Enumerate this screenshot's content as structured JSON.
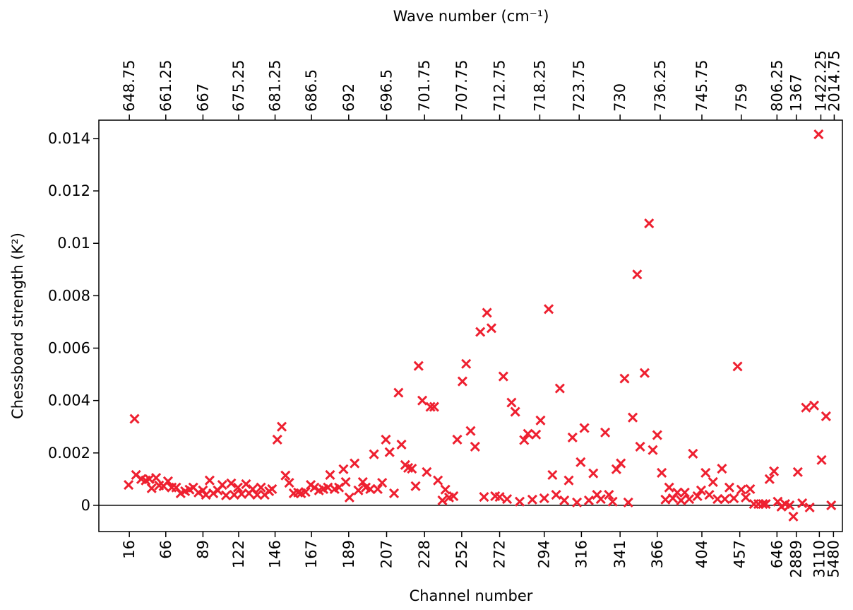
{
  "chart_data": {
    "type": "scatter",
    "title": "Wave number (cm⁻¹)",
    "x_label": "Channel number",
    "y_label": "Chessboard strength (K²)",
    "color": "#ee2030",
    "zero_line": true,
    "xlim": [
      0,
      100
    ],
    "ylim": [
      -0.001,
      0.0147
    ],
    "yticks": [
      0,
      0.002,
      0.004,
      0.006,
      0.008,
      0.01,
      0.012,
      0.014
    ],
    "xticks": [
      {
        "value": 4.1,
        "label": "16"
      },
      {
        "value": 9.0,
        "label": "66"
      },
      {
        "value": 14.0,
        "label": "89"
      },
      {
        "value": 18.8,
        "label": "122"
      },
      {
        "value": 23.7,
        "label": "146"
      },
      {
        "value": 28.6,
        "label": "167"
      },
      {
        "value": 33.6,
        "label": "189"
      },
      {
        "value": 38.7,
        "label": "207"
      },
      {
        "value": 43.8,
        "label": "228"
      },
      {
        "value": 48.8,
        "label": "252"
      },
      {
        "value": 53.9,
        "label": "272"
      },
      {
        "value": 59.9,
        "label": "294"
      },
      {
        "value": 64.9,
        "label": "316"
      },
      {
        "value": 70.1,
        "label": "341"
      },
      {
        "value": 75.1,
        "label": "366"
      },
      {
        "value": 81.1,
        "label": "404"
      },
      {
        "value": 86.2,
        "label": "457"
      },
      {
        "value": 91.2,
        "label": "646"
      },
      {
        "value": 93.8,
        "label": "2889"
      },
      {
        "value": 96.9,
        "label": "3110"
      },
      {
        "value": 98.8,
        "label": "5480"
      }
    ],
    "x2ticks": [
      {
        "value": 4.1,
        "label": "648.75"
      },
      {
        "value": 9.0,
        "label": "661.25"
      },
      {
        "value": 14.0,
        "label": "667"
      },
      {
        "value": 18.8,
        "label": "675.25"
      },
      {
        "value": 23.7,
        "label": "681.25"
      },
      {
        "value": 28.6,
        "label": "686.5"
      },
      {
        "value": 33.6,
        "label": "692"
      },
      {
        "value": 38.7,
        "label": "696.5"
      },
      {
        "value": 43.8,
        "label": "701.75"
      },
      {
        "value": 48.8,
        "label": "707.75"
      },
      {
        "value": 53.9,
        "label": "712.75"
      },
      {
        "value": 59.3,
        "label": "718.25"
      },
      {
        "value": 64.6,
        "label": "723.75"
      },
      {
        "value": 70.1,
        "label": "730"
      },
      {
        "value": 75.5,
        "label": "736.25"
      },
      {
        "value": 81.1,
        "label": "745.75"
      },
      {
        "value": 86.4,
        "label": "759"
      },
      {
        "value": 91.2,
        "label": "806.25"
      },
      {
        "value": 93.8,
        "label": "1367"
      },
      {
        "value": 97.1,
        "label": "1422.25"
      },
      {
        "value": 98.9,
        "label": "2014.75"
      }
    ],
    "x": [
      4.0,
      4.8,
      5.0,
      5.7,
      6.3,
      6.8,
      7.1,
      7.7,
      8.1,
      8.7,
      9.3,
      9.8,
      10.4,
      11.0,
      11.6,
      12.2,
      12.7,
      13.4,
      14.0,
      14.4,
      14.9,
      15.4,
      16.0,
      16.6,
      17.1,
      17.8,
      18.2,
      18.7,
      19.2,
      19.8,
      20.2,
      20.7,
      21.3,
      21.8,
      22.3,
      22.9,
      23.3,
      24.0,
      24.6,
      25.1,
      25.6,
      26.2,
      26.8,
      27.2,
      27.8,
      28.5,
      29.0,
      29.6,
      30.2,
      30.8,
      31.1,
      31.7,
      32.3,
      32.9,
      33.2,
      33.7,
      34.4,
      34.9,
      35.5,
      35.9,
      36.5,
      37.0,
      37.5,
      38.1,
      38.6,
      39.1,
      39.7,
      40.3,
      40.7,
      41.2,
      41.6,
      42.1,
      42.6,
      43.0,
      43.5,
      44.1,
      44.6,
      45.1,
      45.6,
      46.2,
      46.6,
      47.1,
      47.7,
      48.2,
      48.9,
      49.4,
      50.0,
      50.6,
      51.3,
      51.8,
      52.2,
      52.8,
      53.3,
      53.9,
      54.4,
      54.9,
      55.5,
      56.0,
      56.6,
      57.2,
      57.7,
      58.3,
      58.8,
      59.4,
      59.9,
      60.5,
      61.0,
      61.5,
      62.0,
      62.6,
      63.2,
      63.7,
      64.3,
      64.8,
      65.3,
      65.9,
      66.5,
      67.0,
      67.5,
      68.1,
      68.6,
      69.1,
      69.6,
      70.2,
      70.7,
      71.2,
      71.8,
      72.4,
      72.8,
      73.4,
      74.0,
      74.5,
      75.1,
      75.7,
      76.2,
      76.7,
      77.2,
      77.8,
      78.3,
      78.8,
      79.4,
      79.9,
      80.5,
      81.0,
      81.6,
      82.1,
      82.6,
      83.2,
      83.8,
      84.2,
      84.8,
      85.4,
      85.9,
      86.4,
      87.0,
      87.6,
      88.1,
      88.7,
      89.3,
      89.7,
      90.2,
      90.8,
      91.3,
      91.8,
      92.3,
      92.9,
      93.4,
      94.0,
      94.6,
      95.1,
      95.6,
      96.2,
      96.8,
      97.2,
      97.8,
      98.5
    ],
    "values": [
      0.00078,
      0.0033,
      0.00116,
      0.001,
      0.00095,
      0.001,
      0.00065,
      0.00105,
      0.00076,
      0.00073,
      0.00092,
      0.00068,
      0.00068,
      0.00046,
      0.00054,
      0.0006,
      0.00068,
      0.00049,
      0.00057,
      0.0004,
      0.00095,
      0.00046,
      0.00057,
      0.00078,
      0.00038,
      0.00084,
      0.0004,
      0.00068,
      0.00043,
      0.00081,
      0.00046,
      0.00062,
      0.0004,
      0.00068,
      0.0004,
      0.00054,
      0.00062,
      0.00251,
      0.003,
      0.00114,
      0.00086,
      0.00046,
      0.00049,
      0.00046,
      0.00051,
      0.00078,
      0.00068,
      0.00057,
      0.00062,
      0.00068,
      0.00116,
      0.00062,
      0.00068,
      0.00138,
      0.00089,
      0.0003,
      0.0016,
      0.00057,
      0.00089,
      0.00068,
      0.00062,
      0.00195,
      0.00062,
      0.00086,
      0.00251,
      0.00203,
      0.00046,
      0.0043,
      0.00232,
      0.00154,
      0.00143,
      0.0014,
      0.00073,
      0.00532,
      0.004,
      0.00127,
      0.00376,
      0.00376,
      0.00095,
      0.00019,
      0.0006,
      0.0003,
      0.00035,
      0.00251,
      0.00473,
      0.0054,
      0.00284,
      0.00224,
      0.00662,
      0.00032,
      0.00735,
      0.00676,
      0.00035,
      0.00032,
      0.00492,
      0.00024,
      0.00392,
      0.00357,
      0.00014,
      0.00249,
      0.00273,
      0.00022,
      0.0027,
      0.00324,
      0.00027,
      0.00749,
      0.00116,
      0.0004,
      0.00446,
      0.00019,
      0.00095,
      0.00259,
      0.00011,
      0.00165,
      0.00295,
      0.00019,
      0.00122,
      0.0004,
      0.00024,
      0.00278,
      0.0004,
      0.00014,
      0.00138,
      0.0016,
      0.00484,
      0.00011,
      0.00335,
      0.00881,
      0.00224,
      0.00505,
      0.01076,
      0.00211,
      0.00268,
      0.00124,
      0.00022,
      0.00068,
      0.00027,
      0.00049,
      0.00019,
      0.00049,
      0.00024,
      0.00197,
      0.00035,
      0.00057,
      0.00124,
      0.0004,
      0.00089,
      0.00024,
      0.0014,
      0.00024,
      0.00068,
      0.00027,
      0.0053,
      0.0006,
      0.0003,
      0.00062,
      5e-05,
      5e-05,
      5e-05,
      5e-05,
      0.001,
      0.0013,
      0.00014,
      -5e-05,
      5e-05,
      0,
      -0.00043,
      0.00127,
      8e-05,
      0.00373,
      -8e-05,
      0.00381,
      0.01416,
      0.00173,
      0.0034,
      0
    ]
  }
}
